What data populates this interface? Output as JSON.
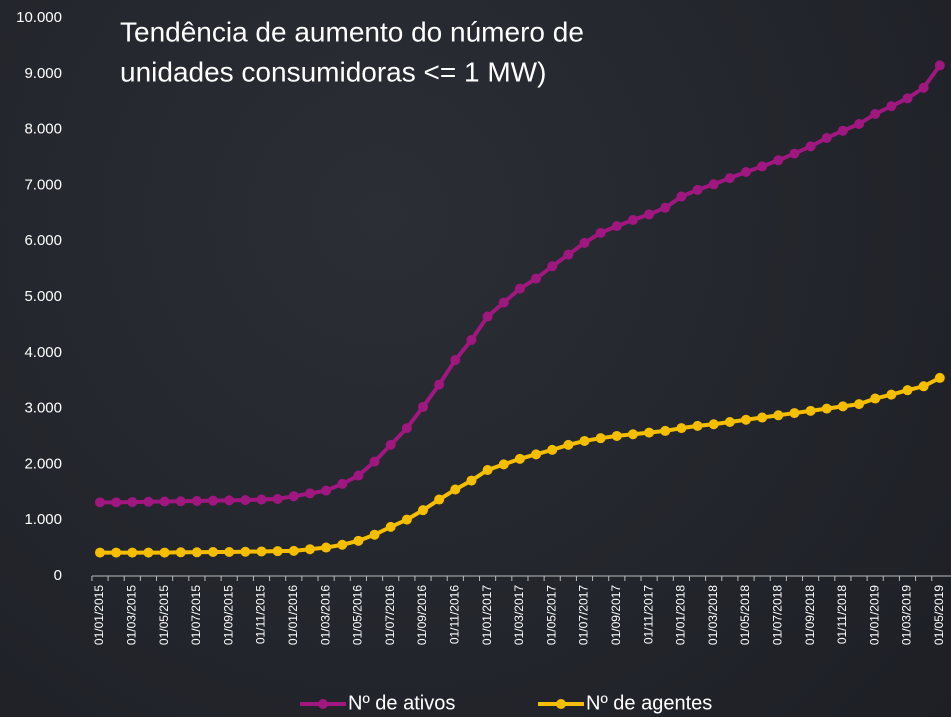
{
  "chart_data": {
    "type": "line",
    "title": [
      "Tendência de aumento do número de",
      "unidades consumidoras <= 1 MW)"
    ],
    "categories": [
      "01/01/2015",
      null,
      "01/03/2015",
      null,
      "01/05/2015",
      null,
      "01/07/2015",
      null,
      "01/09/2015",
      null,
      "01/11/2015",
      null,
      "01/01/2016",
      null,
      "01/03/2016",
      null,
      "01/05/2016",
      null,
      "01/07/2016",
      null,
      "01/09/2016",
      null,
      "01/11/2016",
      null,
      "01/01/2017",
      null,
      "01/03/2017",
      null,
      "01/05/2017",
      null,
      "01/07/2017",
      null,
      "01/09/2017",
      null,
      "01/11/2017",
      null,
      "01/01/2018",
      null,
      "01/03/2018",
      null,
      "01/05/2018",
      null,
      "01/07/2018",
      null,
      "01/09/2018",
      null,
      "01/11/2018",
      null,
      "01/01/2019",
      null,
      "01/03/2019",
      null,
      "01/05/2019"
    ],
    "series": [
      {
        "name": "Nº de ativos",
        "color": "#a0177f",
        "values": [
          1320,
          1320,
          1325,
          1330,
          1335,
          1340,
          1345,
          1350,
          1355,
          1360,
          1370,
          1380,
          1430,
          1480,
          1530,
          1650,
          1800,
          2050,
          2350,
          2650,
          3030,
          3430,
          3870,
          4230,
          4650,
          4900,
          5150,
          5330,
          5550,
          5760,
          5970,
          6150,
          6270,
          6380,
          6480,
          6600,
          6800,
          6920,
          7020,
          7130,
          7240,
          7340,
          7450,
          7570,
          7700,
          7850,
          7980,
          8100,
          8280,
          8420,
          8560,
          8750,
          9150
        ]
      },
      {
        "name": "Nº de agentes",
        "color": "#f5bf00",
        "values": [
          420,
          420,
          420,
          420,
          420,
          425,
          425,
          430,
          430,
          435,
          440,
          445,
          450,
          480,
          510,
          560,
          630,
          740,
          880,
          1010,
          1180,
          1370,
          1550,
          1710,
          1900,
          2000,
          2100,
          2180,
          2260,
          2350,
          2420,
          2470,
          2510,
          2540,
          2570,
          2600,
          2650,
          2690,
          2720,
          2760,
          2800,
          2840,
          2880,
          2920,
          2960,
          3000,
          3040,
          3080,
          3180,
          3250,
          3330,
          3400,
          3550
        ]
      }
    ],
    "ylim": [
      0,
      10000
    ],
    "yticks": [
      0,
      {
        "value": 1000,
        "label": "1.000"
      },
      {
        "value": 2000,
        "label": "2.000"
      },
      {
        "value": 3000,
        "label": "3.000"
      },
      {
        "value": 4000,
        "label": "4.000"
      },
      {
        "value": 5000,
        "label": "5.000"
      },
      {
        "value": 6000,
        "label": "6.000"
      },
      {
        "value": 7000,
        "label": "7.000"
      },
      {
        "value": 8000,
        "label": "8.000"
      },
      {
        "value": 9000,
        "label": "9.000"
      },
      {
        "value": 10000,
        "label": "10.000"
      }
    ],
    "grid": false,
    "legend": "bottom"
  }
}
